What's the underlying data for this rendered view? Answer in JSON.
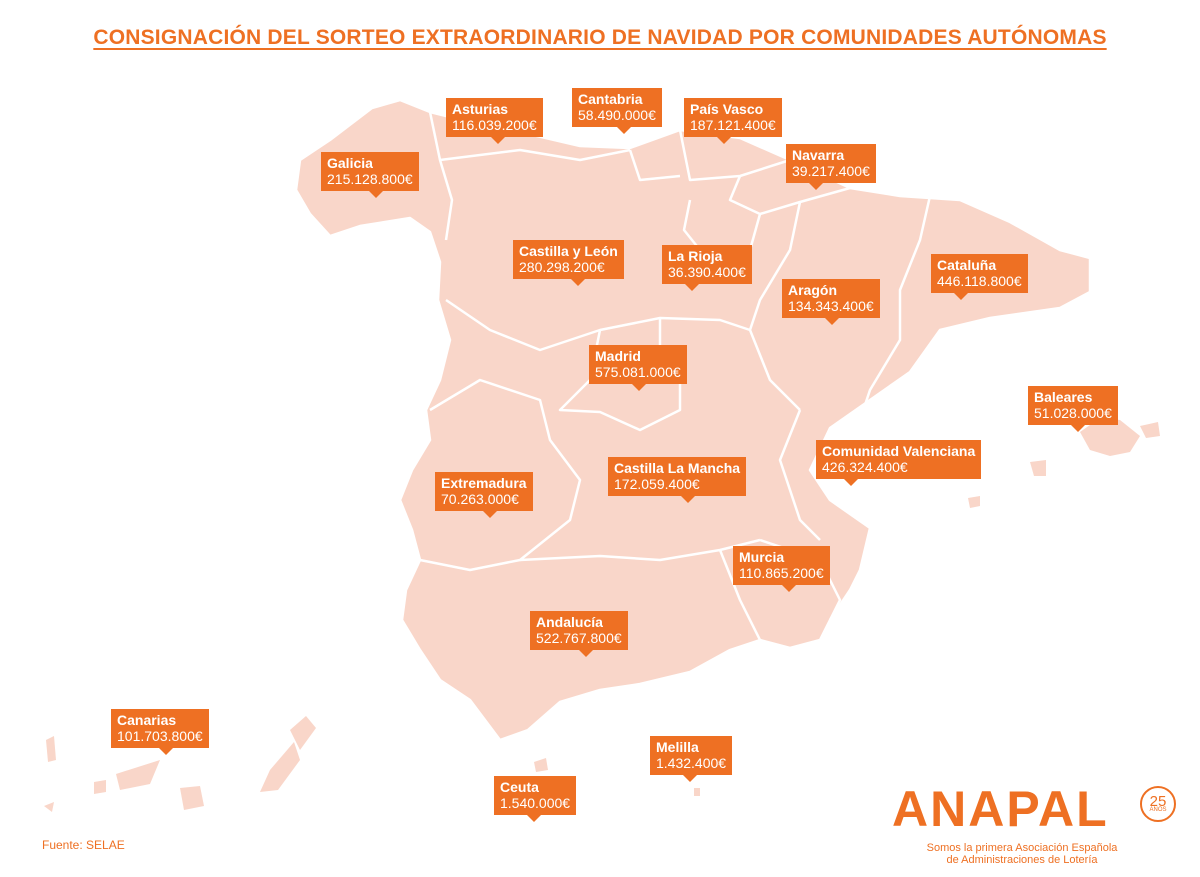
{
  "title": "CONSIGNACIÓN DEL SORTEO EXTRAORDINARIO DE NAVIDAD POR COMUNIDADES AUTÓNOMAS",
  "colors": {
    "accent": "#ee7023",
    "land": "#f9d6c9",
    "border": "#ffffff"
  },
  "regions": [
    {
      "id": "galicia",
      "name": "Galicia",
      "amount": "215.128.800€"
    },
    {
      "id": "asturias",
      "name": "Asturias",
      "amount": "116.039.200€"
    },
    {
      "id": "cantabria",
      "name": "Cantabria",
      "amount": "58.490.000€"
    },
    {
      "id": "pais-vasco",
      "name": "País Vasco",
      "amount": "187.121.400€"
    },
    {
      "id": "navarra",
      "name": "Navarra",
      "amount": "39.217.400€"
    },
    {
      "id": "castilla-leon",
      "name": "Castilla y León",
      "amount": "280.298.200€"
    },
    {
      "id": "la-rioja",
      "name": "La Rioja",
      "amount": "36.390.400€"
    },
    {
      "id": "aragon",
      "name": "Aragón",
      "amount": "134.343.400€"
    },
    {
      "id": "cataluna",
      "name": "Cataluña",
      "amount": "446.118.800€"
    },
    {
      "id": "madrid",
      "name": "Madrid",
      "amount": "575.081.000€"
    },
    {
      "id": "baleares",
      "name": "Baleares",
      "amount": "51.028.000€"
    },
    {
      "id": "valencia",
      "name": "Comunidad Valenciana",
      "amount": "426.324.400€"
    },
    {
      "id": "extremadura",
      "name": "Extremadura",
      "amount": "70.263.000€"
    },
    {
      "id": "castilla-mancha",
      "name": "Castilla La Mancha",
      "amount": "172.059.400€"
    },
    {
      "id": "murcia",
      "name": "Murcia",
      "amount": "110.865.200€"
    },
    {
      "id": "andalucia",
      "name": "Andalucía",
      "amount": "522.767.800€"
    },
    {
      "id": "canarias",
      "name": "Canarias",
      "amount": "101.703.800€"
    },
    {
      "id": "melilla",
      "name": "Melilla",
      "amount": "1.432.400€"
    },
    {
      "id": "ceuta",
      "name": "Ceuta",
      "amount": "1.540.000€"
    }
  ],
  "source": "Fuente: SELAE",
  "logo": {
    "text": "ANAPAL",
    "badge_number": "25",
    "badge_sub": "AÑOS",
    "tagline_1": "Somos la primera Asociación Española",
    "tagline_2": "de Administraciones de Lotería"
  }
}
